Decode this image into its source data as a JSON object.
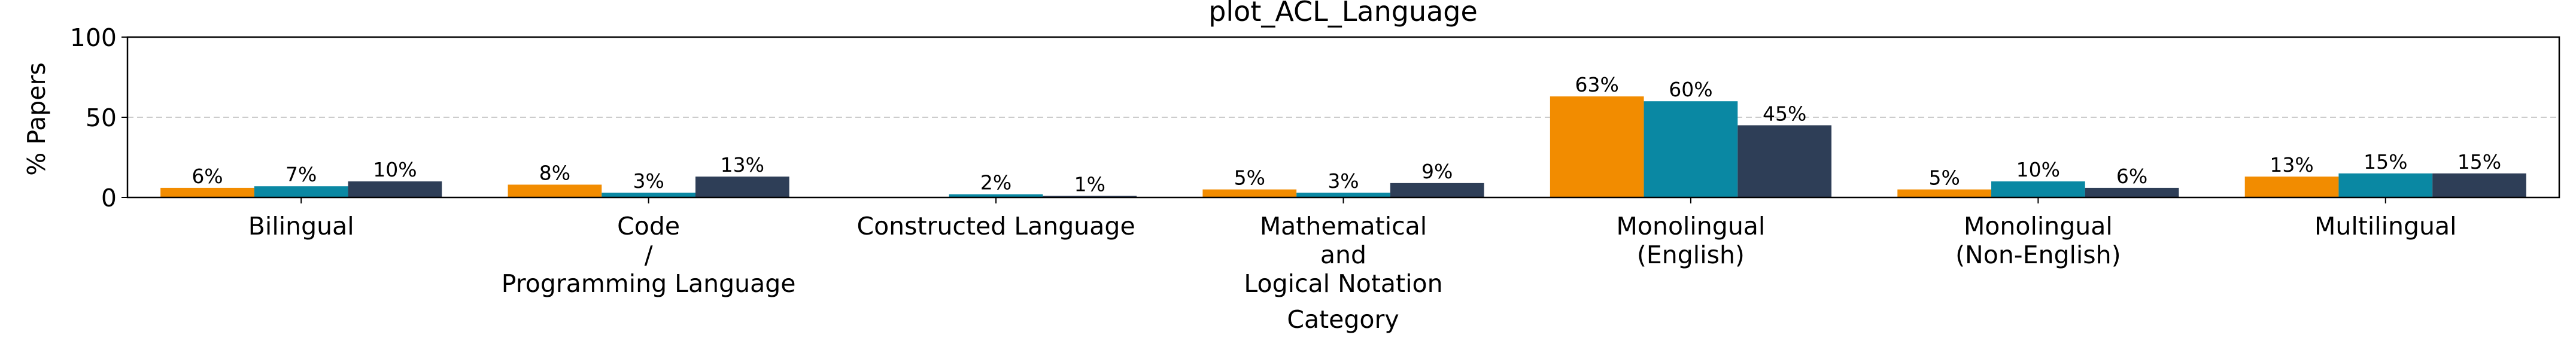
{
  "chart_data": {
    "type": "bar",
    "title": "plot_ACL_Language",
    "xlabel": "Category",
    "ylabel": "% Papers",
    "ylim": [
      0,
      100
    ],
    "yticks": [
      0,
      50,
      100
    ],
    "grid": "horizontal dashed at 50",
    "categories": [
      [
        "Bilingual"
      ],
      [
        "Code",
        "/",
        "Programming Language"
      ],
      [
        "Constructed Language"
      ],
      [
        "Mathematical",
        "and",
        "Logical Notation"
      ],
      [
        "Monolingual",
        "(English)"
      ],
      [
        "Monolingual",
        "(Non-English)"
      ],
      [
        "Multilingual"
      ]
    ],
    "series": [
      {
        "color": "#F28C00",
        "values": [
          6,
          8,
          null,
          5,
          63,
          5,
          13
        ],
        "labels": [
          "6%",
          "8%",
          "",
          "5%",
          "63%",
          "5%",
          "13%"
        ]
      },
      {
        "color": "#0A88A3",
        "values": [
          7,
          3,
          2,
          3,
          60,
          10,
          15
        ],
        "labels": [
          "7%",
          "3%",
          "2%",
          "3%",
          "60%",
          "10%",
          "15%"
        ]
      },
      {
        "color": "#2E3E57",
        "values": [
          10,
          13,
          1,
          9,
          45,
          6,
          15
        ],
        "labels": [
          "10%",
          "13%",
          "1%",
          "9%",
          "45%",
          "6%",
          "15%"
        ]
      }
    ]
  }
}
